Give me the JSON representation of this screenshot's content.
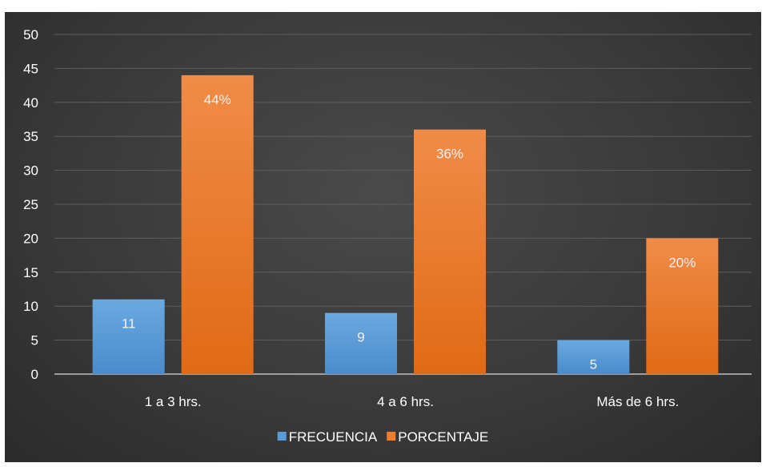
{
  "chart_data": {
    "type": "bar",
    "categories": [
      "1 a 3 hrs.",
      "4 a 6 hrs.",
      "Más de 6 hrs."
    ],
    "series": [
      {
        "name": "FRECUENCIA",
        "values": [
          11,
          9,
          5
        ],
        "labels": [
          "11",
          "9",
          "5"
        ],
        "color": "#5b9bd5"
      },
      {
        "name": "PORCENTAJE",
        "values": [
          44,
          36,
          20
        ],
        "labels": [
          "44%",
          "36%",
          "20%"
        ],
        "color": "#ed7d31"
      }
    ],
    "ylim": [
      0,
      50
    ],
    "yticks": [
      "0",
      "5",
      "10",
      "15",
      "20",
      "25",
      "30",
      "35",
      "40",
      "45",
      "50"
    ],
    "grid": true,
    "legend": "bottom",
    "background": "#3b3b3b"
  }
}
